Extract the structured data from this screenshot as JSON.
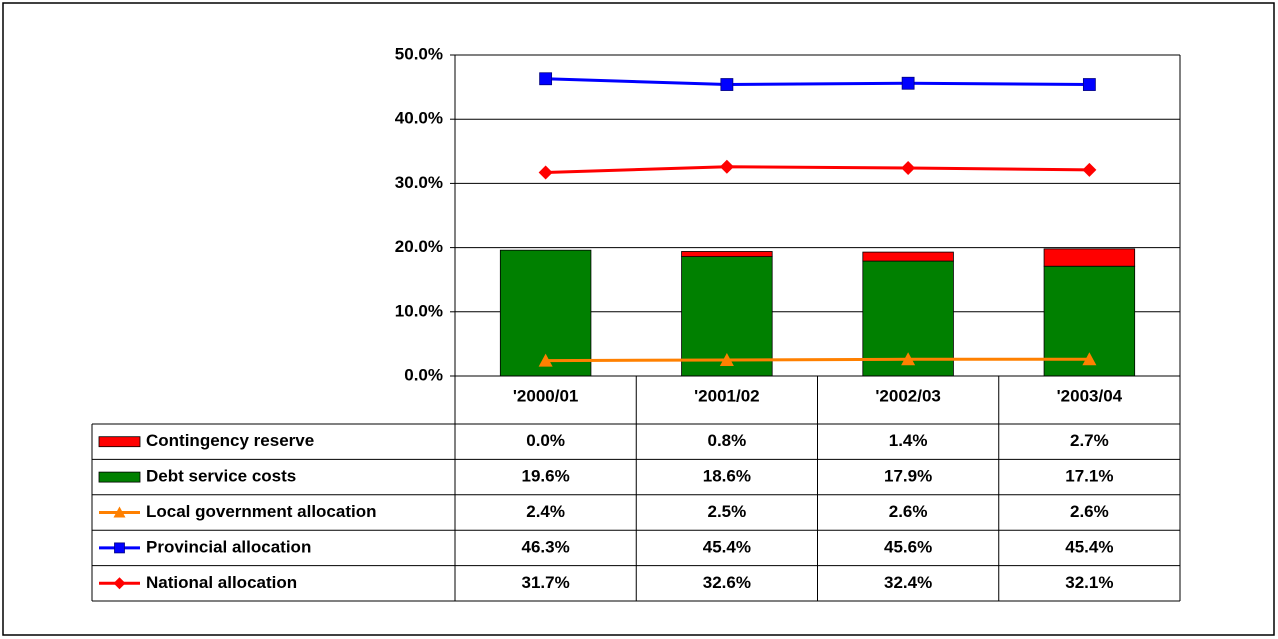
{
  "chart_data": {
    "type": "combo",
    "categories": [
      "'2000/01",
      "'2001/02",
      "'2002/03",
      "'2003/04"
    ],
    "series": [
      {
        "name": "Contingency reserve",
        "type": "bar",
        "color": "#ff0000",
        "values": [
          0.0,
          0.8,
          1.4,
          2.7
        ],
        "value_labels": [
          "0.0%",
          "0.8%",
          "1.4%",
          "2.7%"
        ]
      },
      {
        "name": "Debt service costs",
        "type": "bar",
        "color": "#008000",
        "values": [
          19.6,
          18.6,
          17.9,
          17.1
        ],
        "value_labels": [
          "19.6%",
          "18.6%",
          "17.9%",
          "17.1%"
        ]
      },
      {
        "name": "Local government allocation",
        "type": "line",
        "marker": "triangle",
        "color": "#ff8000",
        "values": [
          2.4,
          2.5,
          2.6,
          2.6
        ],
        "value_labels": [
          "2.4%",
          "2.5%",
          "2.6%",
          "2.6%"
        ]
      },
      {
        "name": "Provincial allocation",
        "type": "line",
        "marker": "square",
        "color": "#0000ff",
        "values": [
          46.3,
          45.4,
          45.6,
          45.4
        ],
        "value_labels": [
          "46.3%",
          "45.4%",
          "45.6%",
          "45.4%"
        ]
      },
      {
        "name": "National allocation",
        "type": "line",
        "marker": "diamond",
        "color": "#ff0000",
        "values": [
          31.7,
          32.6,
          32.4,
          32.1
        ],
        "value_labels": [
          "31.7%",
          "32.6%",
          "32.4%",
          "32.1%"
        ]
      }
    ],
    "ylim": [
      0,
      50
    ],
    "yticks": [
      {
        "value": 0,
        "label": "0.0%"
      },
      {
        "value": 10,
        "label": "10.0%"
      },
      {
        "value": 20,
        "label": "20.0%"
      },
      {
        "value": 30,
        "label": "30.0%"
      },
      {
        "value": 40,
        "label": "40.0%"
      },
      {
        "value": 50,
        "label": "50.0%"
      }
    ],
    "grid": true
  }
}
